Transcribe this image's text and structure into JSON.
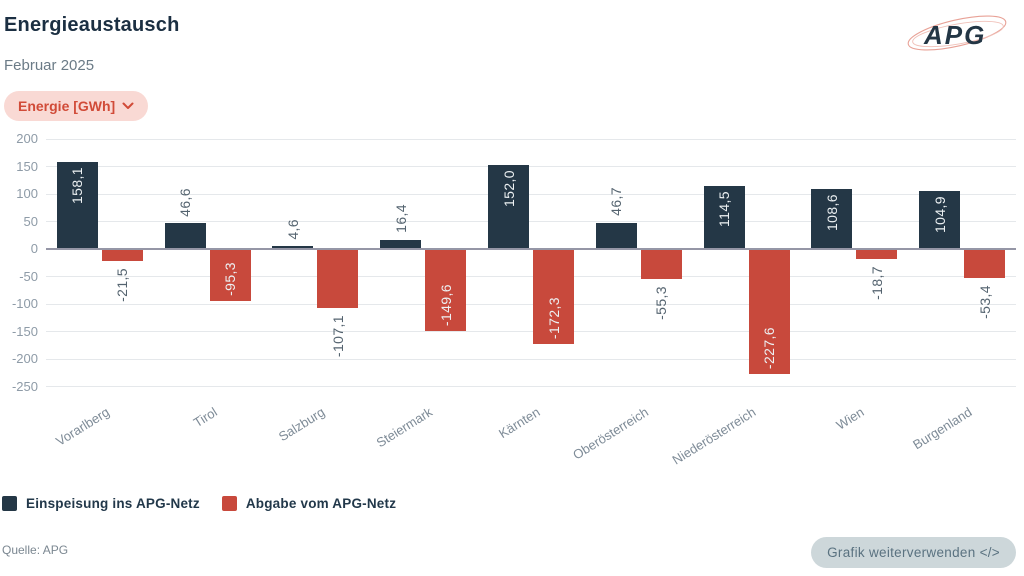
{
  "header": {
    "title": "Energieaustausch",
    "subtitle": "Februar 2025",
    "unit_selector": "Energie [GWh]",
    "logo_text": "APG"
  },
  "legend": [
    {
      "label": "Einspeisung ins APG-Netz",
      "color": "#243746"
    },
    {
      "label": "Abgabe vom APG-Netz",
      "color": "#c8493c"
    }
  ],
  "footer": {
    "source": "Quelle: APG",
    "reuse_button": "Grafik weiterverwenden </>"
  },
  "colors": {
    "navy": "#243746",
    "red": "#c8493c",
    "pill_bg": "#f9d9d4",
    "pill_text": "#d14b38",
    "gridline": "#e5e8eb",
    "zero_line": "#9596a6",
    "label_inside": "#edf1f3",
    "label_outside": "#54636f"
  },
  "chart_data": {
    "type": "bar",
    "title": "Energieaustausch",
    "subtitle": "Februar 2025",
    "unit": "Energie [GWh]",
    "categories": [
      "Vorarlberg",
      "Tirol",
      "Salzburg",
      "Steiermark",
      "Kärnten",
      "Oberösterreich",
      "Niederösterreich",
      "Wien",
      "Burgenland"
    ],
    "series": [
      {
        "name": "Einspeisung ins APG-Netz",
        "color": "#243746",
        "values": [
          158.1,
          46.6,
          4.6,
          16.4,
          152.0,
          46.7,
          114.5,
          108.6,
          104.9
        ],
        "labels": [
          "158,1",
          "46,6",
          "4,6",
          "16,4",
          "152,0",
          "46,7",
          "114,5",
          "108,6",
          "104,9"
        ],
        "label_inside": [
          true,
          false,
          false,
          false,
          true,
          false,
          true,
          true,
          true
        ]
      },
      {
        "name": "Abgabe vom APG-Netz",
        "color": "#c8493c",
        "values": [
          -21.5,
          -95.3,
          -107.1,
          -149.6,
          -172.3,
          -55.3,
          -227.6,
          -18.7,
          -53.4
        ],
        "labels": [
          "-21,5",
          "-95,3",
          "-107,1",
          "-149,6",
          "-172,3",
          "-55,3",
          "-227,6",
          "-18,7",
          "-53,4"
        ],
        "label_inside": [
          false,
          true,
          false,
          true,
          true,
          false,
          true,
          false,
          false
        ]
      }
    ],
    "yticks": [
      200,
      150,
      100,
      50,
      0,
      -50,
      -100,
      -150,
      -200,
      -250
    ],
    "ylim": [
      -250,
      200
    ],
    "xlabel": "",
    "ylabel": "Energie [GWh]",
    "grid": true,
    "legend_position": "bottom"
  }
}
